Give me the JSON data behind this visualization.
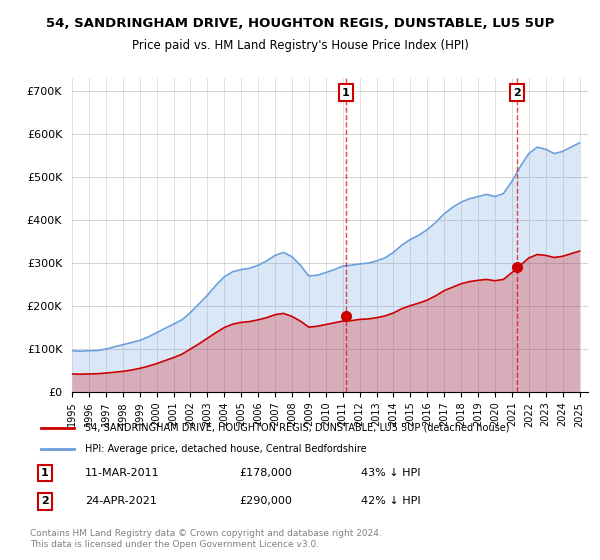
{
  "title": "54, SANDRINGHAM DRIVE, HOUGHTON REGIS, DUNSTABLE, LU5 5UP",
  "subtitle": "Price paid vs. HM Land Registry's House Price Index (HPI)",
  "ylabel_ticks": [
    "£0",
    "£100K",
    "£200K",
    "£300K",
    "£400K",
    "£500K",
    "£600K",
    "£700K"
  ],
  "ytick_vals": [
    0,
    100000,
    200000,
    300000,
    400000,
    500000,
    600000,
    700000
  ],
  "ylim": [
    0,
    730000
  ],
  "xlim_start": 1995.0,
  "xlim_end": 2025.5,
  "marker1_x": 2011.19,
  "marker1_y": 178000,
  "marker1_label": "1",
  "marker1_date": "11-MAR-2011",
  "marker1_price": "£178,000",
  "marker1_hpi": "43% ↓ HPI",
  "marker2_x": 2021.31,
  "marker2_y": 290000,
  "marker2_label": "2",
  "marker2_date": "24-APR-2021",
  "marker2_price": "£290,000",
  "marker2_hpi": "42% ↓ HPI",
  "hpi_color": "#6ca0dc",
  "price_color": "#cc0000",
  "legend_label_price": "54, SANDRINGHAM DRIVE, HOUGHTON REGIS, DUNSTABLE, LU5 5UP (detached house)",
  "legend_label_hpi": "HPI: Average price, detached house, Central Bedfordshire",
  "footnote": "Contains HM Land Registry data © Crown copyright and database right 2024.\nThis data is licensed under the Open Government Licence v3.0.",
  "hpi_years": [
    1995,
    1995.5,
    1996,
    1996.5,
    1997,
    1997.5,
    1998,
    1998.5,
    1999,
    1999.5,
    2000,
    2000.5,
    2001,
    2001.5,
    2002,
    2002.5,
    2003,
    2003.5,
    2004,
    2004.5,
    2005,
    2005.5,
    2006,
    2006.5,
    2007,
    2007.5,
    2008,
    2008.5,
    2009,
    2009.5,
    2010,
    2010.5,
    2011,
    2011.5,
    2012,
    2012.5,
    2013,
    2013.5,
    2014,
    2014.5,
    2015,
    2015.5,
    2016,
    2016.5,
    2017,
    2017.5,
    2018,
    2018.5,
    2019,
    2019.5,
    2020,
    2020.5,
    2021,
    2021.5,
    2022,
    2022.5,
    2023,
    2023.5,
    2024,
    2024.5,
    2025
  ],
  "hpi_vals": [
    96000,
    95000,
    96000,
    96500,
    100000,
    105000,
    110000,
    115000,
    120000,
    128000,
    138000,
    148000,
    158000,
    168000,
    185000,
    205000,
    225000,
    248000,
    268000,
    280000,
    285000,
    288000,
    295000,
    305000,
    318000,
    325000,
    315000,
    295000,
    270000,
    272000,
    278000,
    285000,
    293000,
    295000,
    298000,
    300000,
    305000,
    312000,
    325000,
    342000,
    355000,
    365000,
    378000,
    395000,
    415000,
    430000,
    442000,
    450000,
    455000,
    460000,
    455000,
    462000,
    490000,
    525000,
    555000,
    570000,
    565000,
    555000,
    560000,
    570000,
    580000
  ],
  "price_years": [
    1995,
    1995.5,
    1996,
    1996.5,
    1997,
    1997.5,
    1998,
    1998.5,
    1999,
    1999.5,
    2000,
    2000.5,
    2001,
    2001.5,
    2002,
    2002.5,
    2003,
    2003.5,
    2004,
    2004.5,
    2005,
    2005.5,
    2006,
    2006.5,
    2007,
    2007.5,
    2008,
    2008.5,
    2009,
    2009.5,
    2010,
    2010.5,
    2011,
    2011.5,
    2012,
    2012.5,
    2013,
    2013.5,
    2014,
    2014.5,
    2015,
    2015.5,
    2016,
    2016.5,
    2017,
    2017.5,
    2018,
    2018.5,
    2019,
    2019.5,
    2020,
    2020.5,
    2021,
    2021.5,
    2022,
    2022.5,
    2023,
    2023.5,
    2024,
    2024.5,
    2025
  ],
  "price_vals": [
    42000,
    41500,
    42000,
    42500,
    44000,
    46000,
    48000,
    51000,
    55000,
    60000,
    66000,
    73000,
    80000,
    88000,
    100000,
    112000,
    125000,
    138000,
    150000,
    158000,
    162000,
    164000,
    168000,
    173000,
    180000,
    183000,
    176000,
    165000,
    151000,
    153000,
    157000,
    161000,
    165000,
    166000,
    169000,
    170000,
    173000,
    177000,
    184000,
    194000,
    201000,
    207000,
    214000,
    224000,
    236000,
    244000,
    252000,
    257000,
    260000,
    262000,
    259000,
    262000,
    278000,
    295000,
    312000,
    320000,
    318000,
    313000,
    316000,
    322000,
    328000
  ]
}
